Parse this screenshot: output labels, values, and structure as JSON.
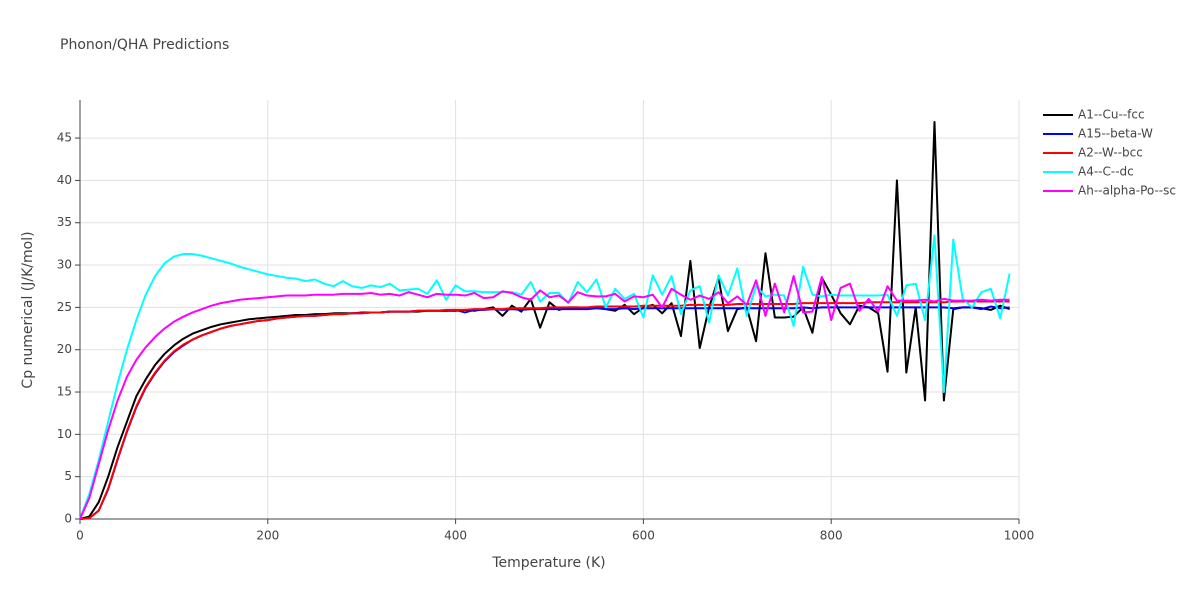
{
  "chart_data": {
    "type": "line",
    "title": "Phonon/QHA Predictions",
    "x_label": "Temperature (K)",
    "y_label": "Cp numerical (J/K/mol)",
    "xlim": [
      0,
      1000
    ],
    "ylim": [
      0,
      49.5
    ],
    "xticks": [
      0,
      200,
      400,
      600,
      800,
      1000
    ],
    "yticks": [
      0,
      5,
      10,
      15,
      20,
      25,
      30,
      35,
      40,
      45
    ],
    "grid": true,
    "legend": "right",
    "x": [
      0,
      10,
      20,
      30,
      40,
      50,
      60,
      70,
      80,
      90,
      100,
      110,
      120,
      130,
      140,
      150,
      160,
      170,
      180,
      190,
      200,
      210,
      220,
      230,
      240,
      250,
      260,
      270,
      280,
      290,
      300,
      310,
      320,
      330,
      340,
      350,
      360,
      370,
      380,
      390,
      400,
      410,
      420,
      430,
      440,
      450,
      460,
      470,
      480,
      490,
      500,
      510,
      520,
      530,
      540,
      550,
      560,
      570,
      580,
      590,
      600,
      610,
      620,
      630,
      640,
      650,
      660,
      670,
      680,
      690,
      700,
      710,
      720,
      730,
      740,
      750,
      760,
      770,
      780,
      790,
      800,
      810,
      820,
      830,
      840,
      850,
      860,
      870,
      880,
      890,
      900,
      910,
      920,
      930,
      940,
      950,
      960,
      970,
      980,
      990
    ],
    "series": [
      {
        "name": "A1--Cu--fcc",
        "color": "#000000",
        "values": [
          0,
          0.3,
          2,
          5,
          8.5,
          11.5,
          14.5,
          16.5,
          18.2,
          19.5,
          20.5,
          21.3,
          21.9,
          22.3,
          22.7,
          23,
          23.2,
          23.4,
          23.6,
          23.7,
          23.8,
          23.9,
          24,
          24.1,
          24.1,
          24.2,
          24.2,
          24.3,
          24.3,
          24.3,
          24.4,
          24.4,
          24.4,
          24.5,
          24.5,
          24.5,
          24.5,
          24.6,
          24.6,
          24.6,
          24.6,
          24.7,
          24.6,
          24.8,
          25,
          24,
          25.2,
          24.5,
          26,
          22.6,
          25.6,
          24.7,
          25,
          25,
          24.8,
          25,
          24.8,
          24.6,
          25.3,
          24.2,
          25,
          25.3,
          24.3,
          25.5,
          21.6,
          30.5,
          20.2,
          25,
          28.5,
          22.2,
          24.8,
          25,
          21,
          31.4,
          23.8,
          23.8,
          23.9,
          25,
          22,
          28.5,
          26.5,
          24.3,
          23,
          25.2,
          25,
          24.3,
          17.4,
          40,
          17.3,
          25,
          14,
          46.9,
          14,
          24.8,
          25,
          25,
          24.9,
          24.7,
          25.2,
          24.8
        ]
      },
      {
        "name": "A15--beta-W",
        "color": "#0000ff",
        "values": [
          0,
          0.1,
          1,
          3.5,
          7,
          10.3,
          13.2,
          15.5,
          17.2,
          18.6,
          19.7,
          20.5,
          21.2,
          21.7,
          22.1,
          22.5,
          22.8,
          23,
          23.2,
          23.4,
          23.5,
          23.7,
          23.8,
          23.9,
          24,
          24,
          24.1,
          24.2,
          24.2,
          24.3,
          24.3,
          24.4,
          24.4,
          24.5,
          24.5,
          24.5,
          24.6,
          24.6,
          24.6,
          24.6,
          24.7,
          24.4,
          24.7,
          24.7,
          24.8,
          24.7,
          24.8,
          24.7,
          24.8,
          24.8,
          24.8,
          24.8,
          24.8,
          24.8,
          24.8,
          24.9,
          24.8,
          24.8,
          24.9,
          24.8,
          24.9,
          24.9,
          24.9,
          24.9,
          24.9,
          24.9,
          24.9,
          24.9,
          24.9,
          24.9,
          24.9,
          24.9,
          24.9,
          24.9,
          24.9,
          24.9,
          24.9,
          25,
          24.9,
          25,
          25,
          25,
          25,
          25,
          25,
          25,
          25,
          25,
          25,
          25,
          25,
          25,
          25,
          24.9,
          25,
          25,
          24.8,
          25.1,
          24.9,
          25
        ]
      },
      {
        "name": "A2--W--bcc",
        "color": "#ff0000",
        "values": [
          0,
          0.1,
          1,
          3.6,
          7.1,
          10.4,
          13.3,
          15.6,
          17.3,
          18.7,
          19.8,
          20.6,
          21.2,
          21.7,
          22.1,
          22.5,
          22.8,
          23,
          23.2,
          23.4,
          23.5,
          23.7,
          23.8,
          23.9,
          24,
          24,
          24.1,
          24.2,
          24.2,
          24.3,
          24.3,
          24.4,
          24.4,
          24.5,
          24.5,
          24.5,
          24.6,
          24.6,
          24.6,
          24.7,
          24.7,
          24.7,
          24.8,
          24.8,
          24.8,
          24.8,
          24.9,
          24.9,
          24.9,
          24.9,
          25,
          25,
          25,
          25,
          25,
          25.1,
          25.1,
          25.1,
          25.1,
          25.1,
          25.2,
          25.2,
          25.2,
          25.2,
          25.2,
          25.3,
          25.3,
          25.3,
          25.3,
          25.3,
          25.4,
          25.4,
          25.4,
          25.4,
          25.4,
          25.4,
          25.4,
          25.5,
          25.5,
          25.5,
          25.5,
          25.5,
          25.5,
          25.5,
          25.6,
          25.6,
          25.6,
          25.6,
          25.6,
          25.6,
          25.6,
          25.6,
          25.6,
          25.7,
          25.7,
          25.7,
          25.7,
          25.7,
          25.7,
          25.7
        ]
      },
      {
        "name": "A4--C--dc",
        "color": "#00ffff",
        "values": [
          0,
          3,
          7,
          11.5,
          16,
          20,
          23.5,
          26.5,
          28.7,
          30.2,
          31,
          31.3,
          31.3,
          31.1,
          30.8,
          30.5,
          30.2,
          29.8,
          29.5,
          29.2,
          28.9,
          28.7,
          28.5,
          28.4,
          28.1,
          28.3,
          27.8,
          27.5,
          28.1,
          27.5,
          27.3,
          27.6,
          27.4,
          27.8,
          27,
          27.1,
          27.2,
          26.6,
          28.2,
          25.9,
          27.6,
          26.9,
          26.9,
          26.8,
          26.8,
          26.8,
          26.8,
          26.5,
          28,
          25.7,
          26.7,
          26.7,
          25.5,
          28,
          26.8,
          28.3,
          25,
          27.2,
          26,
          26.6,
          23.8,
          28.8,
          26.5,
          28.7,
          24.2,
          27,
          27.5,
          23.2,
          28.8,
          26.4,
          29.6,
          24,
          27.5,
          26.3,
          26.5,
          26.4,
          22.8,
          29.8,
          26.5,
          26.3,
          26.5,
          26.4,
          26.4,
          26.4,
          26.4,
          26.4,
          26.5,
          24,
          27.6,
          27.8,
          23.5,
          33.5,
          15,
          33,
          26,
          25,
          26.8,
          27.2,
          23.7,
          29
        ]
      },
      {
        "name": "Ah--alpha-Po--sc",
        "color": "#ff00ff",
        "values": [
          0,
          2.5,
          6.5,
          10.5,
          14,
          16.8,
          18.8,
          20.3,
          21.5,
          22.5,
          23.3,
          23.9,
          24.4,
          24.8,
          25.2,
          25.5,
          25.7,
          25.9,
          26,
          26.1,
          26.2,
          26.3,
          26.4,
          26.4,
          26.4,
          26.5,
          26.5,
          26.5,
          26.6,
          26.6,
          26.6,
          26.7,
          26.5,
          26.6,
          26.4,
          26.8,
          26.5,
          26.2,
          26.6,
          26.5,
          26.5,
          26.4,
          26.7,
          26.1,
          26.2,
          26.9,
          26.7,
          26.2,
          25.9,
          27,
          26.2,
          26.4,
          25.6,
          26.8,
          26.4,
          26.3,
          26.3,
          26.6,
          25.7,
          26.3,
          26.2,
          26.5,
          25,
          27.2,
          26.5,
          25.9,
          26.4,
          26,
          26.8,
          25.5,
          26.3,
          25.3,
          28.2,
          24,
          27.8,
          24.4,
          28.7,
          24.4,
          24.5,
          28.6,
          23.5,
          27.3,
          27.8,
          24.6,
          26,
          24.5,
          27.5,
          25.8,
          25.8,
          25.8,
          25.9,
          25.7,
          26,
          25.8,
          25.8,
          25.8,
          25.9,
          25.8,
          25.9,
          25.9
        ]
      }
    ]
  }
}
